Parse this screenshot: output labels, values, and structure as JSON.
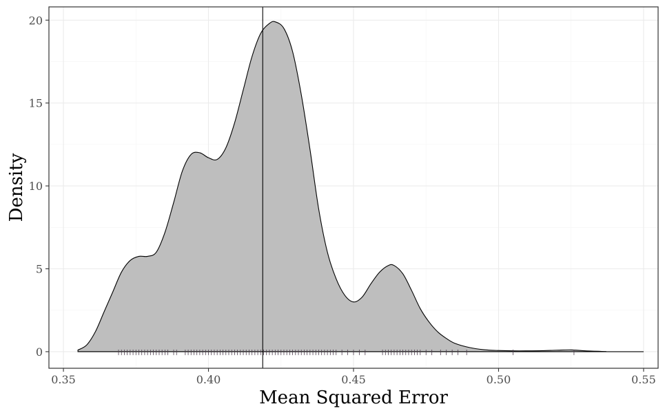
{
  "chart_data": {
    "type": "area",
    "xlabel": "Mean Squared Error",
    "ylabel": "Density",
    "xlim": [
      0.345,
      0.555
    ],
    "ylim": [
      -1,
      20.8
    ],
    "x_ticks": [
      {
        "value": 0.35,
        "label": "0.35"
      },
      {
        "value": 0.4,
        "label": "0.40"
      },
      {
        "value": 0.45,
        "label": "0.45"
      },
      {
        "value": 0.5,
        "label": "0.50"
      },
      {
        "value": 0.55,
        "label": "0.55"
      }
    ],
    "y_ticks": [
      {
        "value": 0,
        "label": "0"
      },
      {
        "value": 5,
        "label": "5"
      },
      {
        "value": 10,
        "label": "10"
      },
      {
        "value": 15,
        "label": "15"
      },
      {
        "value": 20,
        "label": "20"
      }
    ],
    "grid": true,
    "density_curve": {
      "x": [
        0.355,
        0.358,
        0.361,
        0.364,
        0.367,
        0.37,
        0.373,
        0.376,
        0.379,
        0.382,
        0.385,
        0.388,
        0.391,
        0.394,
        0.397,
        0.4,
        0.403,
        0.406,
        0.409,
        0.412,
        0.415,
        0.418,
        0.421,
        0.423,
        0.426,
        0.429,
        0.432,
        0.435,
        0.438,
        0.441,
        0.444,
        0.447,
        0.45,
        0.453,
        0.456,
        0.459,
        0.462,
        0.464,
        0.467,
        0.47,
        0.473,
        0.476,
        0.479,
        0.482,
        0.485,
        0.49,
        0.495,
        0.5,
        0.505,
        0.51,
        0.515,
        0.52,
        0.525,
        0.53,
        0.537
      ],
      "y": [
        0.1,
        0.4,
        1.2,
        2.4,
        3.6,
        4.8,
        5.5,
        5.75,
        5.75,
        6.0,
        7.2,
        9.0,
        10.9,
        11.9,
        12.0,
        11.7,
        11.6,
        12.3,
        13.8,
        15.8,
        17.8,
        19.2,
        19.8,
        19.9,
        19.5,
        18.1,
        15.5,
        12.2,
        8.6,
        6.0,
        4.4,
        3.4,
        3.0,
        3.3,
        4.1,
        4.8,
        5.2,
        5.2,
        4.7,
        3.7,
        2.6,
        1.8,
        1.2,
        0.8,
        0.5,
        0.25,
        0.12,
        0.07,
        0.05,
        0.05,
        0.06,
        0.09,
        0.11,
        0.05,
        0.01
      ]
    },
    "baseline_x_range": [
      0.355,
      0.55
    ],
    "mean_line_x": 0.4187,
    "rug_x": [
      0.369,
      0.37,
      0.371,
      0.372,
      0.373,
      0.374,
      0.375,
      0.376,
      0.377,
      0.378,
      0.379,
      0.38,
      0.381,
      0.382,
      0.383,
      0.384,
      0.385,
      0.386,
      0.388,
      0.389,
      0.392,
      0.393,
      0.394,
      0.395,
      0.396,
      0.397,
      0.398,
      0.399,
      0.4,
      0.401,
      0.402,
      0.403,
      0.404,
      0.405,
      0.406,
      0.407,
      0.408,
      0.409,
      0.41,
      0.411,
      0.412,
      0.413,
      0.414,
      0.415,
      0.416,
      0.417,
      0.418,
      0.419,
      0.42,
      0.421,
      0.422,
      0.423,
      0.424,
      0.425,
      0.426,
      0.427,
      0.428,
      0.429,
      0.43,
      0.431,
      0.432,
      0.433,
      0.434,
      0.435,
      0.436,
      0.437,
      0.438,
      0.439,
      0.44,
      0.441,
      0.442,
      0.443,
      0.444,
      0.446,
      0.448,
      0.45,
      0.452,
      0.454,
      0.46,
      0.461,
      0.462,
      0.463,
      0.464,
      0.465,
      0.466,
      0.467,
      0.468,
      0.469,
      0.47,
      0.471,
      0.472,
      0.473,
      0.475,
      0.477,
      0.48,
      0.482,
      0.484,
      0.486,
      0.489,
      0.505,
      0.526
    ],
    "colors": {
      "fill": "#bebebe",
      "line": "#000000",
      "panel_border": "#333333",
      "rug": "#4a3a4a"
    }
  }
}
